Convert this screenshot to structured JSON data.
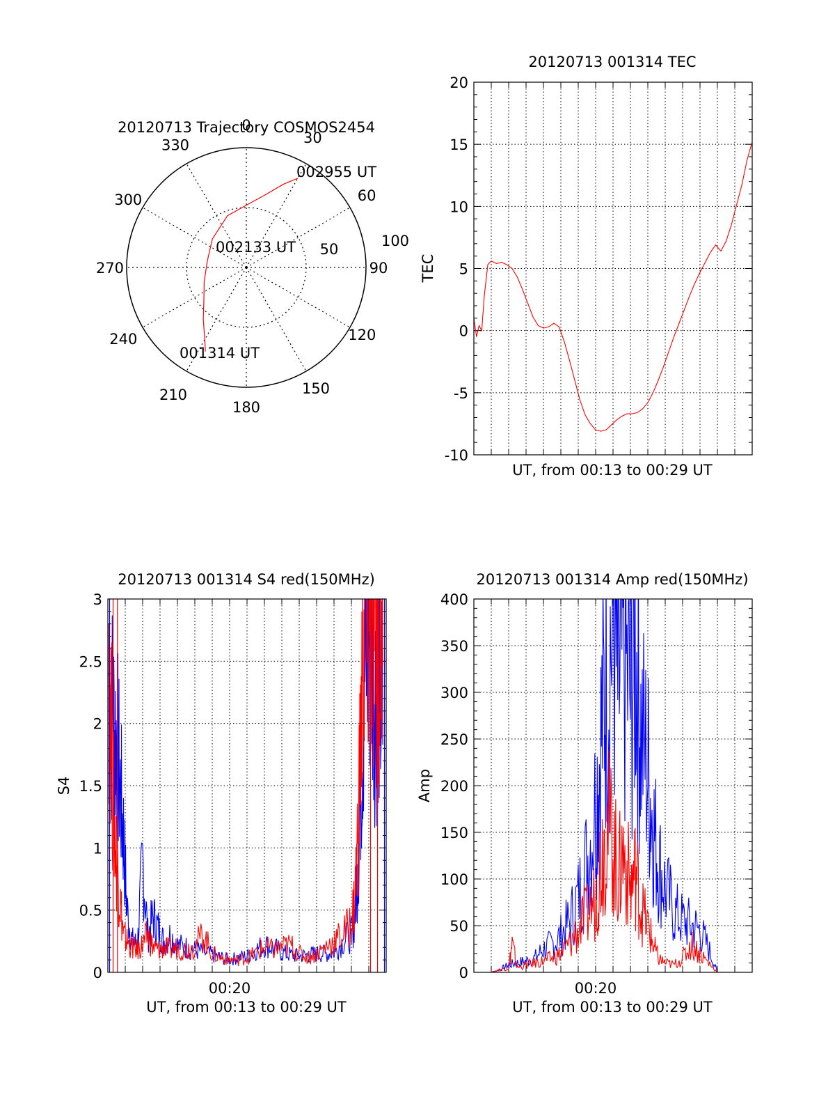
{
  "chart_data": [
    {
      "type": "polar",
      "title": "20120713 Trajectory COSMOS2454",
      "angle_labels": [
        "0",
        "30",
        "60",
        "90",
        "120",
        "150",
        "180",
        "210",
        "240",
        "270",
        "300",
        "330"
      ],
      "radius_labels": [
        "50",
        "100"
      ],
      "rlim": [
        0,
        100
      ],
      "grid": true,
      "colors": {
        "trajectory": "#ff0000"
      },
      "series": [
        {
          "values": [
            {
              "az": 206,
              "zen": 78
            },
            {
              "az": 212,
              "zen": 66
            },
            {
              "az": 220,
              "zen": 56
            },
            {
              "az": 232,
              "zen": 45
            },
            {
              "az": 252,
              "zen": 37
            },
            {
              "az": 280,
              "zen": 33
            },
            {
              "az": 310,
              "zen": 37
            },
            {
              "az": 340,
              "zen": 46
            },
            {
              "az": 0,
              "zen": 52
            },
            {
              "az": 14,
              "zen": 62
            },
            {
              "az": 24,
              "zen": 76
            },
            {
              "az": 30,
              "zen": 86
            }
          ]
        }
      ],
      "annotations": [
        {
          "text": "002955 UT",
          "az": 30,
          "zen": 86
        },
        {
          "text": "002133 UT",
          "az": 250,
          "zen": 5
        },
        {
          "text": "001314 UT",
          "az": 206,
          "zen": 78
        }
      ]
    },
    {
      "type": "line",
      "title": "20120713 001314 TEC",
      "xlabel": "UT, from 00:13 to 00:29 UT",
      "ylabel": "TEC",
      "xlim": [
        0,
        16
      ],
      "ylim": [
        -10,
        20
      ],
      "yticks": [
        "-10",
        "-5",
        "0",
        "5",
        "10",
        "15",
        "20"
      ],
      "grid": true,
      "colors": {
        "series": "#ff0000"
      },
      "series": [
        {
          "x": [
            0.0,
            0.15,
            0.3,
            0.45,
            0.6,
            0.8,
            1.0,
            1.3,
            1.6,
            1.9,
            2.2,
            2.5,
            2.8,
            3.1,
            3.4,
            3.7,
            4.0,
            4.3,
            4.6,
            4.9,
            5.2,
            5.5,
            5.8,
            6.1,
            6.4,
            6.7,
            7.0,
            7.3,
            7.6,
            7.9,
            8.2,
            8.5,
            8.8,
            9.1,
            9.4,
            9.7,
            10.0,
            10.3,
            10.6,
            10.9,
            11.2,
            11.5,
            11.8,
            12.1,
            12.4,
            12.7,
            13.0,
            13.3,
            13.6,
            13.9,
            14.2,
            14.5,
            14.8,
            15.1,
            15.4,
            15.7,
            16.0
          ],
          "values": [
            1.0,
            -0.5,
            0.4,
            0.0,
            2.8,
            5.3,
            5.6,
            5.4,
            5.5,
            5.3,
            5.0,
            4.3,
            3.3,
            2.2,
            1.1,
            0.4,
            0.2,
            0.3,
            0.6,
            0.3,
            -0.9,
            -2.4,
            -4.0,
            -5.6,
            -6.8,
            -7.5,
            -8.0,
            -8.1,
            -8.0,
            -7.6,
            -7.2,
            -6.9,
            -6.7,
            -6.7,
            -6.6,
            -6.3,
            -5.8,
            -5.0,
            -4.0,
            -2.9,
            -1.7,
            -0.5,
            0.6,
            1.7,
            2.8,
            3.8,
            4.7,
            5.5,
            6.3,
            6.9,
            6.4,
            7.2,
            8.5,
            10.1,
            11.7,
            13.7,
            15.2
          ]
        }
      ]
    },
    {
      "type": "line",
      "title": "20120713 001314 S4 red(150MHz)",
      "xlabel": "UT, from 00:13 to 00:29 UT",
      "ylabel": "S4",
      "xlim": [
        0,
        16
      ],
      "ylim": [
        0,
        3
      ],
      "xticks": [
        {
          "x": 7,
          "label": "00:20"
        }
      ],
      "yticks": [
        "0",
        "0.5",
        "1",
        "1.5",
        "2",
        "2.5",
        "3"
      ],
      "grid": true,
      "colors": {
        "blue": "#0000ff",
        "red": "#ff0000"
      },
      "series": [
        {
          "color": "blue",
          "x": [
            0.05,
            0.3,
            0.5,
            0.7,
            0.9,
            1.1,
            1.4,
            1.7,
            2.0,
            2.3,
            2.6,
            2.9,
            3.2,
            3.6,
            4.0,
            4.5,
            5.0,
            5.5,
            6.0,
            6.5,
            7.0,
            7.5,
            8.0,
            8.5,
            9.0,
            9.5,
            10.0,
            10.5,
            11.0,
            11.5,
            12.0,
            12.5,
            13.0,
            13.5,
            14.0,
            14.2,
            14.4,
            14.6,
            14.8,
            15.0,
            15.2,
            15.4,
            15.6,
            15.8
          ],
          "values": [
            2.4,
            2.0,
            1.9,
            1.5,
            1.1,
            0.5,
            0.25,
            0.22,
            0.9,
            0.3,
            0.45,
            0.35,
            0.25,
            0.3,
            0.22,
            0.2,
            0.18,
            0.16,
            0.14,
            0.12,
            0.1,
            0.12,
            0.13,
            0.18,
            0.22,
            0.2,
            0.16,
            0.14,
            0.13,
            0.14,
            0.15,
            0.15,
            0.16,
            0.25,
            0.3,
            0.45,
            0.9,
            1.8,
            2.5,
            2.8,
            2.6,
            2.2,
            2.4,
            2.0
          ]
        },
        {
          "color": "red",
          "x": [
            0.05,
            0.3,
            0.5,
            0.7,
            0.9,
            1.1,
            1.4,
            1.7,
            2.0,
            2.3,
            2.6,
            2.9,
            3.2,
            3.6,
            4.0,
            4.5,
            5.0,
            5.5,
            6.0,
            6.5,
            7.0,
            7.5,
            8.0,
            8.5,
            9.0,
            9.5,
            10.0,
            10.5,
            11.0,
            11.5,
            12.0,
            12.5,
            13.0,
            13.5,
            14.0,
            14.2,
            14.4,
            14.6,
            14.8,
            15.0,
            15.2,
            15.4,
            15.6,
            15.8
          ],
          "values": [
            2.8,
            1.4,
            0.9,
            0.6,
            0.3,
            0.25,
            0.2,
            0.18,
            0.22,
            0.3,
            0.2,
            0.18,
            0.2,
            0.18,
            0.2,
            0.18,
            0.22,
            0.3,
            0.15,
            0.12,
            0.1,
            0.1,
            0.12,
            0.15,
            0.2,
            0.18,
            0.2,
            0.22,
            0.15,
            0.12,
            0.15,
            0.2,
            0.25,
            0.3,
            0.4,
            0.6,
            1.2,
            2.2,
            2.9,
            2.7,
            2.6,
            2.8,
            2.5,
            2.9
          ]
        }
      ]
    },
    {
      "type": "line",
      "title": "20120713 001314 Amp red(150MHz)",
      "xlabel": "UT, from 00:13 to 00:29 UT",
      "ylabel": "Amp",
      "xlim": [
        0,
        16
      ],
      "ylim": [
        0,
        400
      ],
      "xticks": [
        {
          "x": 7,
          "label": "00:20"
        }
      ],
      "yticks": [
        "0",
        "50",
        "100",
        "150",
        "200",
        "250",
        "300",
        "350",
        "400"
      ],
      "grid": true,
      "colors": {
        "blue": "#0000ff",
        "red": "#ff0000"
      },
      "series": [
        {
          "color": "blue",
          "x": [
            0.0,
            1.0,
            1.5,
            2.0,
            2.5,
            3.0,
            3.5,
            4.0,
            4.5,
            5.0,
            5.5,
            6.0,
            6.5,
            7.0,
            7.3,
            7.6,
            8.0,
            8.3,
            8.6,
            9.0,
            9.3,
            9.6,
            10.0,
            10.3,
            10.6,
            11.0,
            11.5,
            12.0,
            12.5,
            13.0,
            13.5,
            14.0,
            14.5,
            15.0,
            16.0
          ],
          "values": [
            0,
            0,
            3,
            8,
            10,
            12,
            15,
            25,
            30,
            40,
            55,
            80,
            120,
            180,
            250,
            320,
            370,
            300,
            340,
            290,
            350,
            260,
            220,
            160,
            120,
            90,
            65,
            55,
            50,
            45,
            25,
            0,
            0,
            0,
            0
          ]
        },
        {
          "color": "red",
          "x": [
            0.0,
            1.0,
            1.5,
            2.0,
            2.2,
            2.5,
            3.0,
            3.5,
            4.0,
            4.5,
            5.0,
            5.5,
            6.0,
            6.5,
            7.0,
            7.3,
            7.6,
            8.0,
            8.3,
            8.6,
            9.0,
            9.3,
            9.6,
            10.0,
            10.3,
            10.6,
            11.0,
            11.5,
            12.0,
            12.5,
            13.0,
            13.5,
            14.0,
            14.5,
            16.0
          ],
          "values": [
            0,
            0,
            3,
            5,
            30,
            5,
            8,
            10,
            12,
            15,
            20,
            30,
            45,
            60,
            80,
            120,
            160,
            140,
            100,
            130,
            90,
            110,
            70,
            50,
            30,
            15,
            10,
            8,
            15,
            30,
            20,
            10,
            0,
            0,
            0
          ]
        }
      ]
    }
  ]
}
